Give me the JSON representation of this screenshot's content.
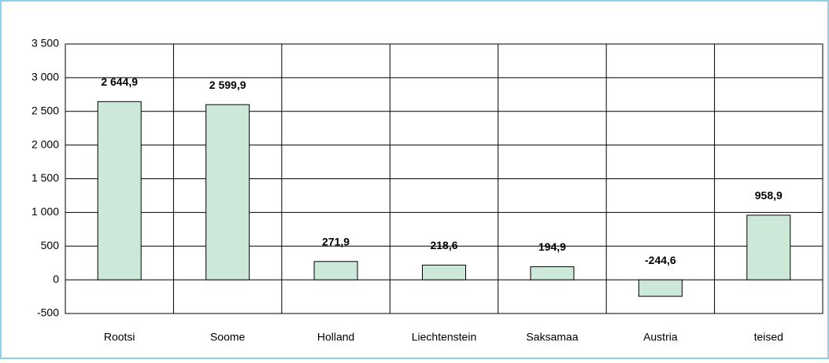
{
  "chart_data": {
    "type": "bar",
    "categories": [
      "Rootsi",
      "Soome",
      "Holland",
      "Liechtenstein",
      "Saksamaa",
      "Austria",
      "teised"
    ],
    "values": [
      2644.9,
      2599.9,
      271.9,
      218.6,
      194.9,
      -244.6,
      958.9
    ],
    "value_labels": [
      "2 644,9",
      "2 599,9",
      "271,9",
      "218,6",
      "194,9",
      "-244,6",
      "958,9"
    ],
    "color": "#cce8d8",
    "ylim": [
      -500,
      3500
    ],
    "yticks": [
      -500,
      0,
      500,
      {
        "value": 1000,
        "label": "1 000"
      },
      {
        "value": 1500,
        "label": "1 500"
      },
      {
        "value": 2000,
        "label": "2 000"
      },
      {
        "value": 2500,
        "label": "2 500"
      },
      {
        "value": 3000,
        "label": "3 000"
      },
      {
        "value": 3500,
        "label": "3 500"
      }
    ],
    "grid": true
  }
}
